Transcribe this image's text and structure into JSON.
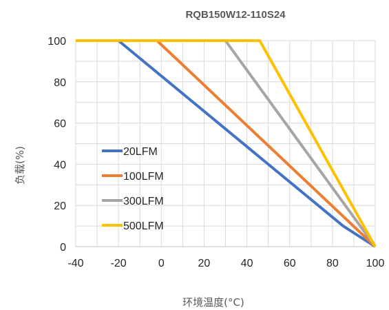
{
  "chart_data": {
    "type": "line",
    "title": "RQB150W12-110S24",
    "xlabel": "环境温度(°C)",
    "ylabel": "负载(%)",
    "xlim": [
      -40,
      100
    ],
    "ylim": [
      0,
      100
    ],
    "xticks": [
      -40,
      -20,
      0,
      20,
      40,
      60,
      80,
      100
    ],
    "yticks": [
      0,
      20,
      40,
      60,
      80,
      100
    ],
    "grid": true,
    "legend_position": "left-center",
    "series": [
      {
        "name": "20LFM",
        "color": "#4472C4",
        "points": [
          [
            -40,
            100
          ],
          [
            -20,
            100
          ],
          [
            85,
            10
          ],
          [
            100,
            0
          ]
        ]
      },
      {
        "name": "100LFM",
        "color": "#ED7D31",
        "points": [
          [
            -40,
            100
          ],
          [
            -2,
            100
          ],
          [
            100,
            0
          ]
        ]
      },
      {
        "name": "300LFM",
        "color": "#A5A5A5",
        "points": [
          [
            -40,
            100
          ],
          [
            30,
            100
          ],
          [
            100,
            0
          ]
        ]
      },
      {
        "name": "500LFM",
        "color": "#FFC000",
        "points": [
          [
            -40,
            100
          ],
          [
            46,
            100
          ],
          [
            100,
            0
          ]
        ]
      }
    ]
  }
}
